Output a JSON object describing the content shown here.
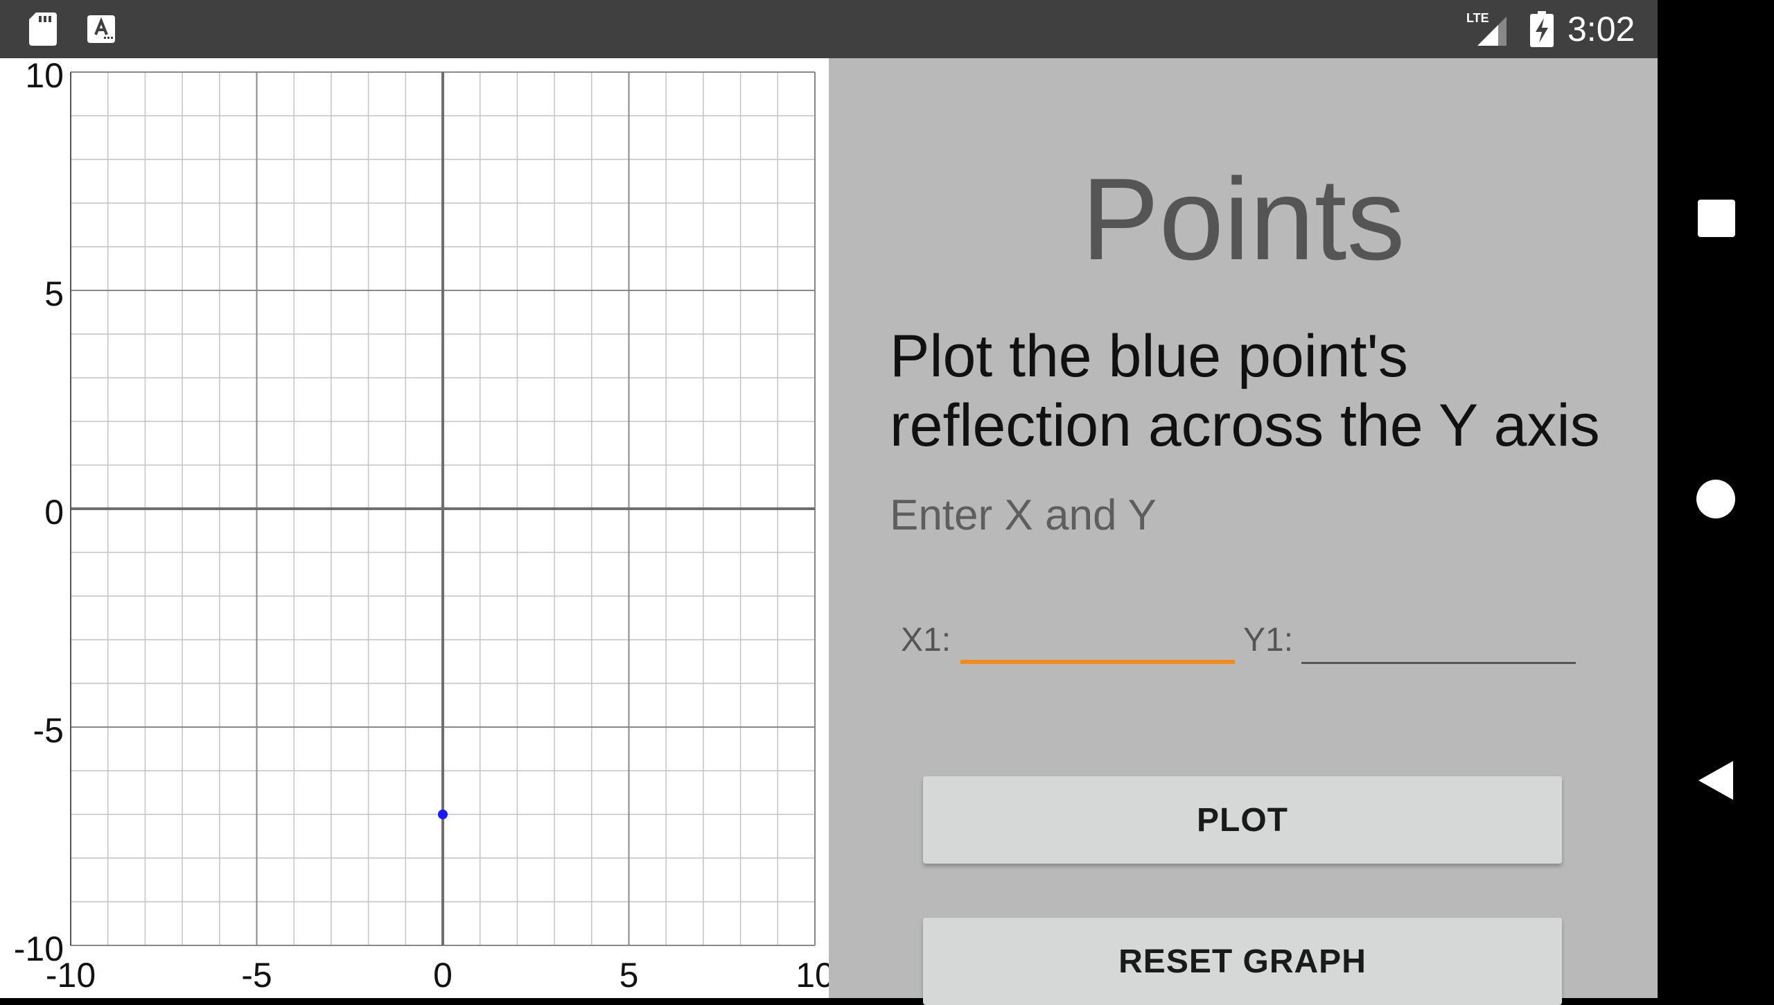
{
  "status_bar": {
    "time": "3:02",
    "network": "LTE",
    "icons": [
      "sd-card-icon",
      "keyboard-a-icon",
      "lte-signal-icon",
      "battery-charging-icon"
    ]
  },
  "nav_bar": {
    "icons": [
      "recents-icon",
      "home-icon",
      "back-icon"
    ]
  },
  "panel": {
    "title": "Points",
    "instruction": "Plot the blue point's reflection across the Y axis",
    "hint": "Enter X and Y",
    "x1_label": "X1:",
    "y1_label": "Y1:",
    "x1_value": "",
    "y1_value": "",
    "plot_button": "PLOT",
    "reset_button": "RESET GRAPH"
  },
  "colors": {
    "panel_bg": "#b9b9b9",
    "accent_orange": "#f28b1b",
    "point_blue": "#1a1aff",
    "status_bar_bg": "#404040"
  },
  "chart_data": {
    "type": "scatter",
    "xlim": [
      -10,
      10
    ],
    "ylim": [
      -10,
      10
    ],
    "x_ticks": [
      -10,
      -5,
      0,
      5,
      10
    ],
    "y_ticks": [
      10,
      5,
      0,
      -5,
      -10
    ],
    "x_tick_labels": [
      "-10",
      "-5",
      "0",
      "5",
      "10"
    ],
    "y_tick_labels": [
      "10",
      "5",
      "0",
      "-5",
      "-10"
    ],
    "grid": true,
    "minor_step": 1,
    "major_step": 5,
    "points": [
      {
        "x": 0,
        "y": -7,
        "color": "#1a1aff"
      }
    ]
  }
}
